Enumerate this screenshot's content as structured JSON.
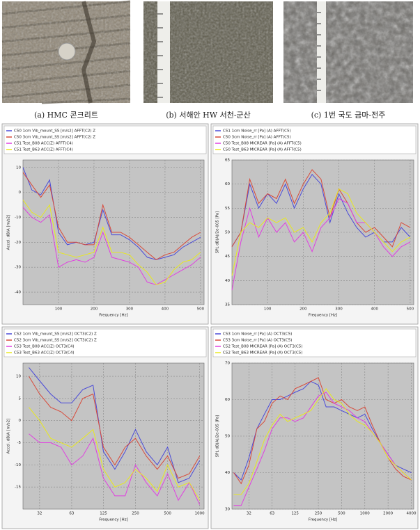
{
  "figure": {
    "captions": [
      "(a) HMC 콘크리트",
      "(b) 서해안 HW 서천-군산",
      "(c) 1번 국도 금마-전주"
    ]
  },
  "chart_data": [
    {
      "type": "line",
      "xlabel": "Frequency [Hz]",
      "ylabel": "Accel. dB/A [m/s2]",
      "x": [
        0,
        25,
        50,
        75,
        100,
        125,
        150,
        175,
        200,
        225,
        250,
        275,
        300,
        325,
        350,
        375,
        400,
        425,
        450,
        475,
        500
      ],
      "xlim": [
        0,
        510
      ],
      "xticks": [
        100,
        200,
        300,
        400,
        500
      ],
      "ylim": [
        -45,
        13
      ],
      "yticks": [
        10,
        0,
        -10,
        -20,
        -30,
        -40
      ],
      "grid": true,
      "log_x": false,
      "series": [
        {
          "name": "C50 1cm Vib_mount_SS [m/s2] AFFT(C2) Z",
          "color": "#4a4ad8",
          "values": [
            10,
            1,
            -1,
            5,
            -16,
            -21,
            -20,
            -21,
            -20,
            -7,
            -17,
            -17,
            -19,
            -22,
            -26,
            -27,
            -26,
            -25,
            -22,
            -20,
            -18
          ]
        },
        {
          "name": "C50 3cm Vib_mount_SS [m/s2] AFFT(C2) Z",
          "color": "#d84a3a",
          "values": [
            8,
            3,
            -2,
            3,
            -14,
            -20,
            -20,
            -21,
            -21,
            -5,
            -16,
            -16,
            -18,
            -21,
            -24,
            -27,
            -25,
            -24,
            -21,
            -18,
            -16
          ]
        },
        {
          "name": "C51 Test_B08 ACC(Z) AFFT(C4)",
          "color": "#e040e0",
          "values": [
            -6,
            -10,
            -12,
            -9,
            -30,
            -28,
            -27,
            -28,
            -26,
            -16,
            -26,
            -27,
            -28,
            -30,
            -36,
            -37,
            -35,
            -33,
            -31,
            -29,
            -26
          ]
        },
        {
          "name": "C51 Test_B63 ACC(Z) AFFT(C4)",
          "color": "#e8e820",
          "values": [
            -3,
            -8,
            -10,
            -5,
            -24,
            -25,
            -26,
            -25,
            -24,
            -14,
            -24,
            -24,
            -25,
            -29,
            -32,
            -37,
            -36,
            -31,
            -28,
            -27,
            -24
          ]
        }
      ]
    },
    {
      "type": "line",
      "xlabel": "Frequency [Hz]",
      "ylabel": "SPL dB(A)/2e-005 [Pa]",
      "x": [
        0,
        25,
        50,
        75,
        100,
        125,
        150,
        175,
        200,
        225,
        250,
        275,
        300,
        325,
        350,
        375,
        400,
        425,
        450,
        475,
        500
      ],
      "xlim": [
        0,
        510
      ],
      "xticks": [
        100,
        200,
        300,
        400,
        500
      ],
      "ylim": [
        35,
        65
      ],
      "yticks": [
        35,
        40,
        45,
        50,
        55,
        60,
        65
      ],
      "grid": true,
      "log_x": false,
      "series": [
        {
          "name": "C51 1cm Noise_rr [Pa] (A) AFFT(C5)",
          "color": "#4a4ad8",
          "values": [
            47,
            50,
            60,
            55,
            58,
            56,
            60,
            55,
            59,
            62,
            60,
            52,
            58,
            54,
            51,
            49,
            50,
            48,
            48,
            51,
            49
          ]
        },
        {
          "name": "C50 3cm Noise_rr [Pa] (A) AFFT(C5)",
          "color": "#d84a3a",
          "values": [
            47,
            50,
            61,
            56,
            58,
            57,
            61,
            56,
            60,
            63,
            61,
            53,
            59,
            56,
            52,
            50,
            51,
            49,
            47,
            52,
            51
          ]
        },
        {
          "name": "C50 Test_B08 MICREAR [Pa] (A) AFFT(C5)",
          "color": "#e040e0",
          "values": [
            38,
            48,
            55,
            49,
            53,
            50,
            52,
            48,
            50,
            46,
            51,
            53,
            57,
            56,
            52,
            52,
            50,
            47,
            45,
            47,
            48
          ]
        },
        {
          "name": "C50 Test_B63 MICREAR [Pa] (A) AFFT(C5)",
          "color": "#e8e820",
          "values": [
            41,
            50,
            52,
            51,
            53,
            52,
            53,
            50,
            51,
            48,
            52,
            54,
            59,
            58,
            54,
            52,
            50,
            48,
            46,
            48,
            49
          ]
        }
      ]
    },
    {
      "type": "line",
      "xlabel": "Frequency [Hz]",
      "ylabel": "Accel. dB/A [m/s2]",
      "x": [
        25,
        31.5,
        40,
        50,
        63,
        80,
        100,
        125,
        160,
        200,
        250,
        315,
        400,
        500,
        630,
        800,
        1000
      ],
      "xlim": [
        22,
        1100
      ],
      "xticks": [
        {
          "value": 31.5,
          "label": "32"
        },
        63,
        125,
        250,
        500,
        1000
      ],
      "ylim": [
        -20,
        13
      ],
      "yticks": [
        10,
        5,
        0,
        -5,
        -10,
        -15
      ],
      "grid": true,
      "log_x": true,
      "series": [
        {
          "name": "C52 1cm Vib_mount_SS [m/s2] OCT3(C2) Z",
          "color": "#4a4ad8",
          "values": [
            12,
            9,
            6,
            4,
            4,
            7,
            8,
            -7,
            -11,
            -7,
            -2,
            -7,
            -10,
            -6,
            -14,
            -13,
            -9
          ]
        },
        {
          "name": "C52 3cm Vib_mount_SS [m/s2] OCT3(C2) Z",
          "color": "#d84a3a",
          "values": [
            10,
            6,
            3,
            2,
            0,
            5,
            6,
            -6,
            -10,
            -6,
            -4,
            -8,
            -11,
            -8,
            -13,
            -12,
            -8
          ]
        },
        {
          "name": "C53 Test_B08 ACC(Z) OCT3(C4)",
          "color": "#e040e0",
          "values": [
            -3,
            -5,
            -5,
            -6,
            -10,
            -8,
            -4,
            -13,
            -17,
            -17,
            -10,
            -14,
            -17,
            -12,
            -18,
            -14,
            -19
          ]
        },
        {
          "name": "C53 Test_B63 ACC(Z) OCT3(C4)",
          "color": "#e8e820",
          "values": [
            3,
            0,
            -4,
            -5,
            -6,
            -4,
            -2,
            -11,
            -15,
            -14,
            -11,
            -13,
            -16,
            -10,
            -15,
            -14,
            -18
          ]
        }
      ]
    },
    {
      "type": "line",
      "xlabel": "Frequency [Hz]",
      "ylabel": "SPL dB(A)/2e-005 [Pa]",
      "x": [
        20,
        25,
        31.5,
        40,
        50,
        63,
        80,
        100,
        125,
        160,
        200,
        250,
        315,
        400,
        500,
        630,
        800,
        1000,
        1250,
        1600,
        2000,
        2500,
        3150,
        4000
      ],
      "xlim": [
        19,
        4300
      ],
      "xticks": [
        {
          "value": 31.5,
          "label": "32"
        },
        63,
        125,
        250,
        500,
        1000,
        2000,
        4000
      ],
      "ylim": [
        30,
        70
      ],
      "yticks": [
        30,
        40,
        50,
        60,
        70
      ],
      "grid": true,
      "log_x": true,
      "series": [
        {
          "name": "C53 1cm Noise_rr [Pa] (A) OCT3(C5)",
          "color": "#4a4ad8",
          "values": [
            40,
            38,
            44,
            52,
            56,
            60,
            60,
            61,
            62,
            63,
            65,
            64,
            58,
            58,
            57,
            56,
            55,
            56,
            52,
            48,
            45,
            42,
            41,
            40
          ]
        },
        {
          "name": "C53 3cm Noise_rr [Pa] (A) OCT3(C5)",
          "color": "#d84a3a",
          "values": [
            40,
            37,
            42,
            52,
            54,
            59,
            61,
            60,
            63,
            64,
            65,
            66,
            60,
            59,
            60,
            58,
            57,
            58,
            53,
            48,
            44,
            41,
            39,
            38
          ]
        },
        {
          "name": "C52 Test_B08 MICREAR [Pa] (A) OCT3(C5)",
          "color": "#e040e0",
          "values": [
            31,
            31,
            36,
            41,
            46,
            52,
            55,
            55,
            54,
            55,
            58,
            61,
            62,
            59,
            58,
            57,
            55,
            54,
            51,
            48,
            45,
            42,
            40,
            38
          ]
        },
        {
          "name": "C52 Test_B63 MICREAR [Pa] (A) OCT3(C5)",
          "color": "#e8e820",
          "values": [
            34,
            34,
            37,
            43,
            49,
            53,
            56,
            54,
            55,
            56,
            57,
            60,
            63,
            60,
            59,
            56,
            54,
            53,
            51,
            48,
            44,
            42,
            40,
            38
          ]
        }
      ]
    }
  ]
}
